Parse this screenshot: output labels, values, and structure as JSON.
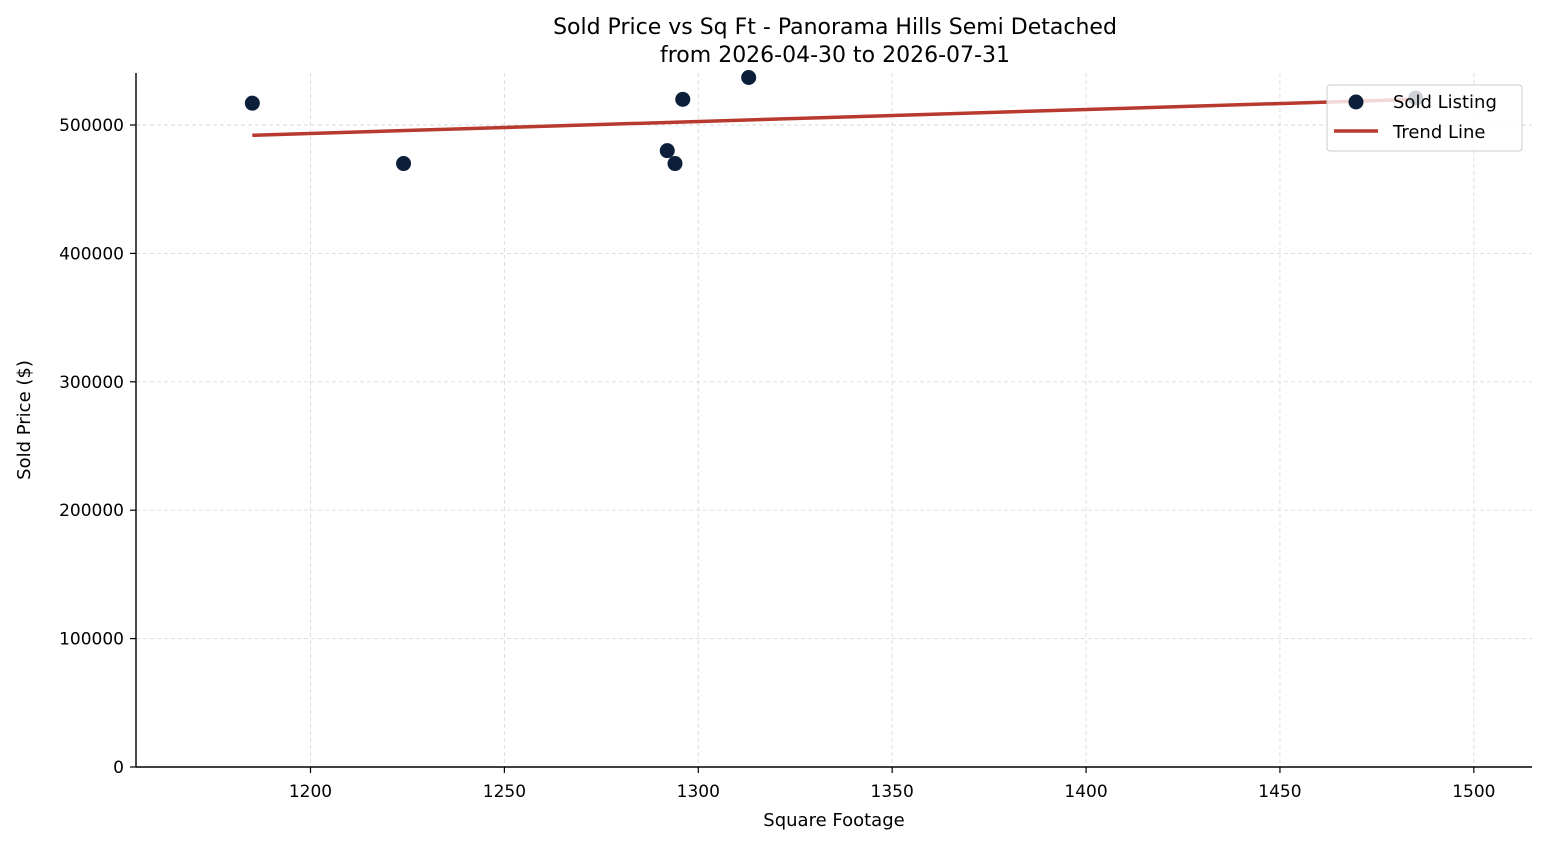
{
  "chart_data": {
    "type": "scatter",
    "title_line1": "Sold Price vs Sq Ft - Panorama Hills Semi Detached",
    "title_line2": "from 2026-04-30 to 2026-07-31",
    "xlabel": "Square Footage",
    "ylabel": "Sold Price ($)",
    "xlim": [
      1155,
      1515
    ],
    "ylim": [
      0,
      540000
    ],
    "xticks": [
      1200,
      1250,
      1300,
      1350,
      1400,
      1450,
      1500
    ],
    "yticks": [
      0,
      100000,
      200000,
      300000,
      400000,
      500000
    ],
    "grid": true,
    "legend_position": "upper-right",
    "series": [
      {
        "name": "Sold Listing",
        "kind": "scatter",
        "color": "#0b1f3a",
        "points": [
          {
            "x": 1185,
            "y": 517000
          },
          {
            "x": 1224,
            "y": 470000
          },
          {
            "x": 1292,
            "y": 480000
          },
          {
            "x": 1294,
            "y": 470000
          },
          {
            "x": 1296,
            "y": 520000
          },
          {
            "x": 1313,
            "y": 537000
          },
          {
            "x": 1485,
            "y": 521000
          }
        ]
      },
      {
        "name": "Trend Line",
        "kind": "line",
        "color": "#b83a2e",
        "points": [
          {
            "x": 1185,
            "y": 492000
          },
          {
            "x": 1485,
            "y": 520000
          }
        ]
      }
    ]
  }
}
